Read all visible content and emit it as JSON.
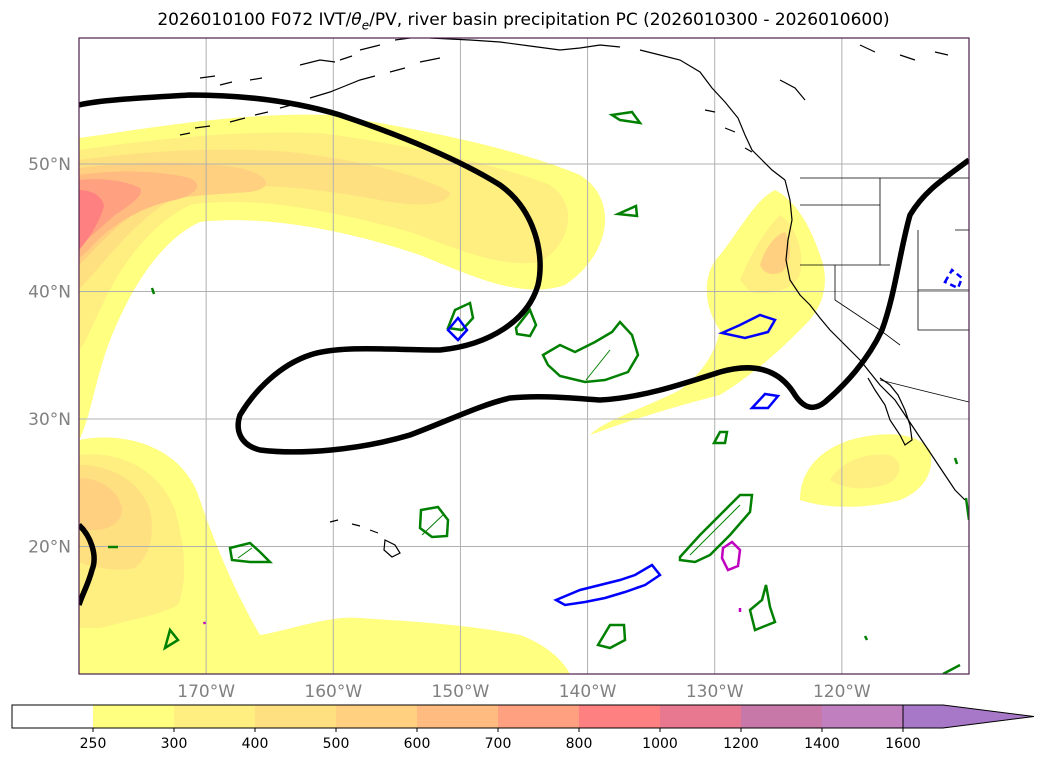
{
  "title": {
    "prefix": "2026010100 F072 IVT/",
    "theta": "θ",
    "theta_sub": "e",
    "suffix": "/PV, river basin precipitation PC (2026010300 - 2026010600)"
  },
  "map": {
    "extent": {
      "lon_min": -180,
      "lon_max": -110,
      "lat_min": 10,
      "lat_max": 60
    },
    "lat_ticks": [
      {
        "value": 50,
        "label": "50°N"
      },
      {
        "value": 40,
        "label": "40°N"
      },
      {
        "value": 30,
        "label": "30°N"
      },
      {
        "value": 20,
        "label": "20°N"
      }
    ],
    "lon_ticks": [
      {
        "value": -170,
        "label": "170°W"
      },
      {
        "value": -160,
        "label": "160°W"
      },
      {
        "value": -150,
        "label": "150°W"
      },
      {
        "value": -140,
        "label": "140°W"
      },
      {
        "value": -130,
        "label": "130°W"
      },
      {
        "value": -120,
        "label": "120°W"
      }
    ],
    "grid": true
  },
  "colorbar": {
    "levels": [
      "250",
      "300",
      "400",
      "500",
      "600",
      "700",
      "800",
      "1000",
      "1200",
      "1400",
      "1600"
    ],
    "colors": [
      "#ffffff",
      "#ffff80",
      "#ffee80",
      "#ffe080",
      "#ffd080",
      "#ffbb80",
      "#ffa080",
      "#ff8080",
      "#e87890",
      "#c878a8",
      "#c080c0",
      "#a878c8"
    ],
    "extend": "max"
  },
  "colors": {
    "pv_contour": "#000000",
    "theta_contour_green": "#008000",
    "theta_contour_blue": "#0000ff",
    "theta_contour_magenta": "#c000c0",
    "coastline": "#000000",
    "grid": "#b0b0b0"
  }
}
